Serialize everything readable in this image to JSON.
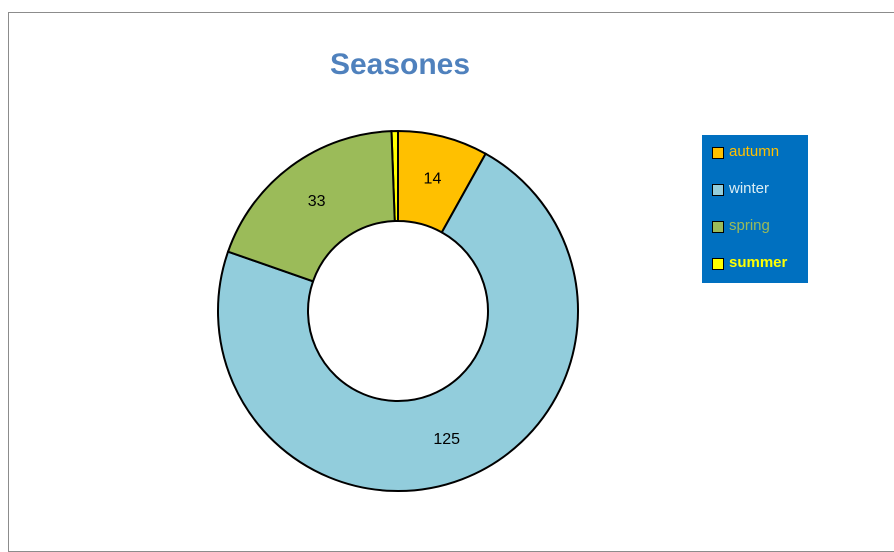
{
  "chart_data": {
    "type": "pie",
    "variant": "donut",
    "title": "Seasones",
    "categories": [
      "autumn",
      "winter",
      "spring",
      "summer"
    ],
    "values": [
      14,
      125,
      33,
      1
    ],
    "data_labels": [
      "14",
      "125",
      "33",
      ""
    ],
    "colors": [
      "#ffc000",
      "#92cddc",
      "#9bbb59",
      "#ffff00"
    ],
    "legend_text_colors": [
      "#ffc000",
      "#dbeef4",
      "#9bbb59",
      "#ffff00"
    ],
    "legend_position": "right",
    "legend_background": "#0070c0",
    "title_color": "#4f81bd"
  }
}
